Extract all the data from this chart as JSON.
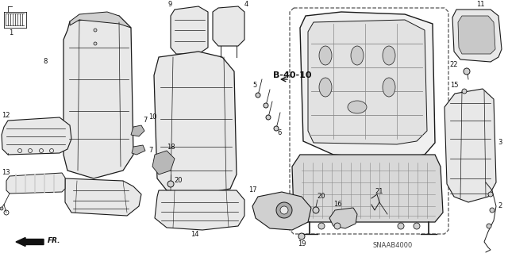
{
  "bg_color": "#ffffff",
  "diagram_code": "SNAAB4000",
  "ref_code": "B-40-10",
  "fr_label": "FR.",
  "line_color": "#1a1a1a",
  "fill_light": "#e8e8e8",
  "fill_mid": "#d0d0d0",
  "fill_dark": "#b8b8b8",
  "fig_width": 6.4,
  "fig_height": 3.19
}
